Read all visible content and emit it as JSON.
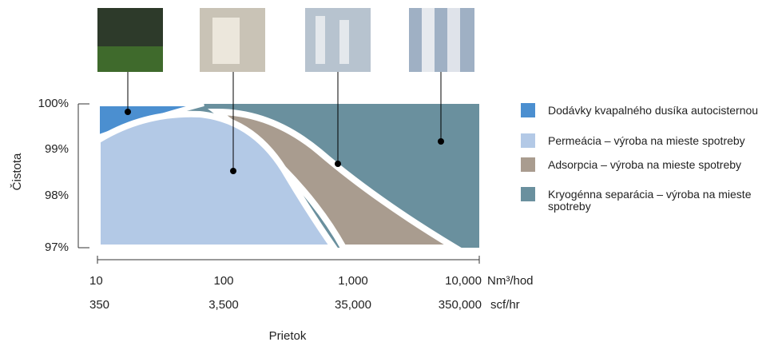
{
  "y_axis": {
    "label": "Čistota",
    "ticks": [
      "100%",
      "99%",
      "98%",
      "97%"
    ]
  },
  "x_axis": {
    "label": "Prietok",
    "rows": [
      {
        "ticks": [
          "10",
          "100",
          "1,000",
          "10,000"
        ],
        "unit": "Nm³/hod"
      },
      {
        "ticks": [
          "350",
          "3,500",
          "35,000",
          "350,000"
        ],
        "unit": "scf/hr"
      }
    ]
  },
  "legend": [
    {
      "label": "Dodávky kvapalného dusíka autocisternou"
    },
    {
      "label": "Permeácia – výroba na mieste spotreby"
    },
    {
      "label": "Adsorpcia – výroba na mieste spotreby"
    },
    {
      "label": "Kryogénna separácia – výroba na mieste spotreby"
    }
  ]
}
